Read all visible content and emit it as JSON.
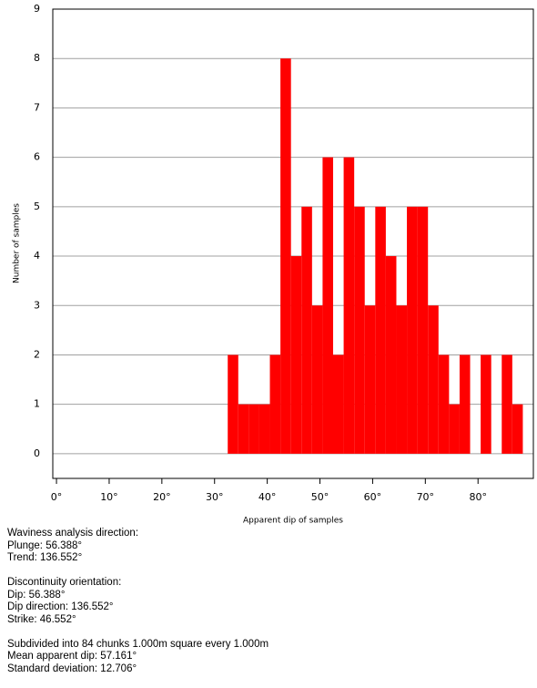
{
  "chart_data": {
    "type": "histogram",
    "xlabel": "Apparent dip of samples",
    "ylabel": "Number of samples",
    "bins": [
      32.5,
      34.5,
      36.5,
      38.5,
      40.5,
      42.5,
      44.5,
      46.5,
      48.5,
      50.5,
      52.5,
      54.5,
      56.5,
      58.5,
      60.5,
      62.5,
      64.5,
      66.5,
      68.5,
      70.5,
      72.5,
      74.5,
      76.5,
      78.5,
      80.5,
      82.5,
      84.5,
      86.5,
      88.5
    ],
    "values": [
      2,
      1,
      1,
      1,
      2,
      8,
      4,
      5,
      3,
      6,
      2,
      6,
      5,
      3,
      5,
      4,
      3,
      5,
      5,
      3,
      2,
      1,
      2,
      0,
      2,
      0,
      2,
      1
    ],
    "color": "#ff0000",
    "xlim": [
      -0.7,
      90.5
    ],
    "ylim": [
      -0.5,
      9
    ],
    "xticks": [
      {
        "value": 0,
        "label": "0°"
      },
      {
        "value": 10,
        "label": "10°"
      },
      {
        "value": 20,
        "label": "20°"
      },
      {
        "value": 30,
        "label": "30°"
      },
      {
        "value": 40,
        "label": "40°"
      },
      {
        "value": 50,
        "label": "50°"
      },
      {
        "value": 60,
        "label": "60°"
      },
      {
        "value": 70,
        "label": "70°"
      },
      {
        "value": 80,
        "label": "80°"
      }
    ],
    "yticks": [
      0,
      1,
      2,
      3,
      4,
      5,
      6,
      7,
      8,
      9
    ],
    "grid": true
  },
  "info": [
    [
      "Waviness analysis direction:",
      "Plunge: 56.388°",
      "Trend: 136.552°"
    ],
    [
      "Discontinuity orientation:",
      "Dip: 56.388°",
      "Dip direction: 136.552°",
      "Strike: 46.552°"
    ],
    [
      "Subdivided into 84 chunks 1.000m square every 1.000m",
      "Mean apparent dip: 57.161°",
      "Standard deviation: 12.706°"
    ]
  ]
}
